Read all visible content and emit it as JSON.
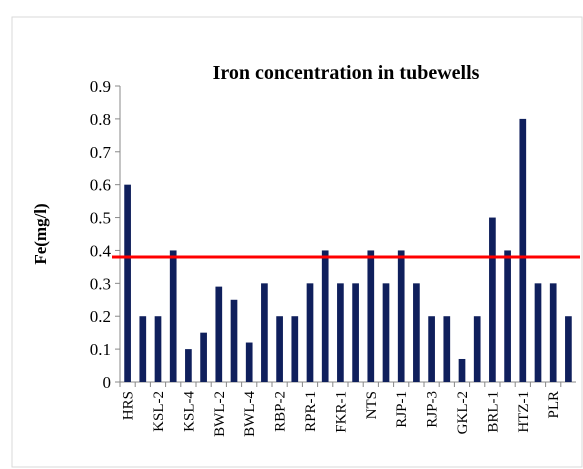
{
  "chart_data": {
    "type": "bar",
    "title": "Iron concentration in tubewells",
    "y_label": "Fe(mg/l)",
    "categories": [
      "HRS",
      null,
      "KSL-2",
      null,
      "KSL-4",
      null,
      "BWL-2",
      null,
      "BWL-4",
      null,
      "RBP-2",
      null,
      "RPR-1",
      null,
      "FKR-1",
      null,
      "NTS",
      null,
      "RJP-1",
      null,
      "RJP-3",
      null,
      "GKL-2",
      null,
      "BRL-1",
      null,
      "HTZ-1",
      null,
      "PLR",
      null
    ],
    "values": [
      0.6,
      0.2,
      0.2,
      0.4,
      0.1,
      0.15,
      0.29,
      0.25,
      0.12,
      0.3,
      0.2,
      0.2,
      0.3,
      0.4,
      0.3,
      0.3,
      0.4,
      0.3,
      0.4,
      0.3,
      0.2,
      0.2,
      0.07,
      0.2,
      0.5,
      0.4,
      0.8,
      0.3,
      0.3,
      0.2
    ],
    "color": "#0f1f5c",
    "ylim": [
      0,
      0.9
    ],
    "yticks": [
      0,
      0.1,
      0.2,
      0.3,
      0.4,
      0.5,
      0.6,
      0.7,
      0.8,
      0.9
    ],
    "reference_line": {
      "value": 0.38,
      "color": "#ff0000"
    }
  }
}
